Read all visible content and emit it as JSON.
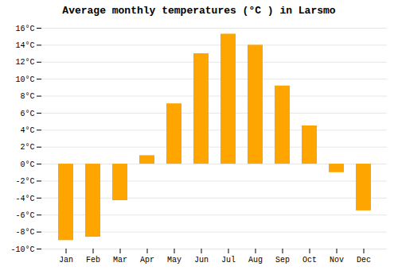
{
  "chart_data": {
    "type": "bar",
    "title": "Average monthly temperatures (°C ) in Larsmo",
    "categories": [
      "Jan",
      "Feb",
      "Mar",
      "Apr",
      "May",
      "Jun",
      "Jul",
      "Aug",
      "Sep",
      "Oct",
      "Nov",
      "Dec"
    ],
    "values": [
      -9.0,
      -8.6,
      -4.3,
      1.0,
      7.1,
      13.0,
      15.3,
      14.0,
      9.2,
      4.5,
      -1.0,
      -5.5
    ],
    "color": "#FFA500",
    "ylim": [
      -10,
      16
    ],
    "yticks": [
      {
        "value": -10,
        "label": "-10°C"
      },
      {
        "value": -8,
        "label": "-8°C"
      },
      {
        "value": -6,
        "label": "-6°C"
      },
      {
        "value": -4,
        "label": "-4°C"
      },
      {
        "value": -2,
        "label": "-2°C"
      },
      {
        "value": 0,
        "label": "0°C"
      },
      {
        "value": 2,
        "label": "2°C"
      },
      {
        "value": 4,
        "label": "4°C"
      },
      {
        "value": 6,
        "label": "6°C"
      },
      {
        "value": 8,
        "label": "8°C"
      },
      {
        "value": 10,
        "label": "10°C"
      },
      {
        "value": 12,
        "label": "12°C"
      },
      {
        "value": 14,
        "label": "14°C"
      },
      {
        "value": 16,
        "label": "16°C"
      }
    ],
    "grid": true
  }
}
